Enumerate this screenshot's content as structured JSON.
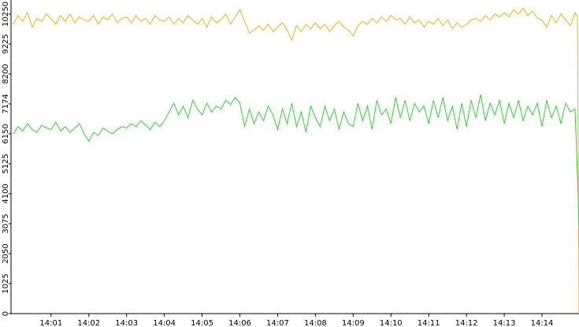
{
  "chart_data": {
    "type": "line",
    "x": [
      0,
      0.125,
      0.25,
      0.375,
      0.5,
      0.625,
      0.75,
      0.875,
      1,
      1.125,
      1.25,
      1.375,
      1.5,
      1.625,
      1.75,
      1.875,
      2,
      2.125,
      2.25,
      2.375,
      2.5,
      2.625,
      2.75,
      2.875,
      3,
      3.125,
      3.25,
      3.375,
      3.5,
      3.625,
      3.75,
      3.875,
      4,
      4.125,
      4.25,
      4.375,
      4.5,
      4.625,
      4.75,
      4.875,
      5,
      5.125,
      5.25,
      5.375,
      5.5,
      5.625,
      5.75,
      5.875,
      6,
      6.125,
      6.25,
      6.375,
      6.5,
      6.625,
      6.75,
      6.875,
      7,
      7.125,
      7.25,
      7.375,
      7.5,
      7.625,
      7.75,
      7.875,
      8,
      8.125,
      8.25,
      8.375,
      8.5,
      8.625,
      8.75,
      8.875,
      9,
      9.125,
      9.25,
      9.375,
      9.5,
      9.625,
      9.75,
      9.875,
      10,
      10.125,
      10.25,
      10.375,
      10.5,
      10.625,
      10.75,
      10.875,
      11,
      11.125,
      11.25,
      11.375,
      11.5,
      11.625,
      11.75,
      11.875,
      12,
      12.125,
      12.25,
      12.375,
      12.5,
      12.625,
      12.75,
      12.875,
      13,
      13.125,
      13.25,
      13.375,
      13.5,
      13.625,
      13.75,
      13.875,
      14,
      14.125,
      14.25,
      14.375,
      14.5,
      14.625,
      14.75,
      14.875,
      14.94,
      14.98
    ],
    "series": [
      {
        "color": "#f0b400",
        "values": [
          9900,
          10200,
          10000,
          10300,
          9800,
          10100,
          10000,
          10250,
          10100,
          9900,
          10200,
          10000,
          10250,
          9950,
          10150,
          10050,
          10000,
          10200,
          9900,
          10150,
          10050,
          10250,
          9950,
          10100,
          10150,
          9950,
          10200,
          10000,
          10100,
          9900,
          10200,
          10050,
          10000,
          10150,
          9900,
          10100,
          9950,
          10200,
          10050,
          9900,
          10100,
          9800,
          10150,
          9950,
          10050,
          10250,
          9900,
          10150,
          10400,
          10000,
          9600,
          9700,
          9850,
          9700,
          9900,
          9650,
          9800,
          9950,
          9700,
          9350,
          9850,
          9650,
          9900,
          9750,
          9950,
          9750,
          9900,
          9650,
          9850,
          10000,
          9800,
          9700,
          9500,
          9850,
          10000,
          9900,
          10100,
          9950,
          10150,
          10000,
          10200,
          10050,
          10100,
          9900,
          10150,
          9950,
          10050,
          9800,
          10000,
          9900,
          10100,
          9850,
          10050,
          9750,
          9950,
          9800,
          9900,
          10050,
          10100,
          10000,
          10200,
          10050,
          10250,
          10150,
          10300,
          10150,
          10400,
          10250,
          10450,
          10200,
          10350,
          10100,
          10050,
          9800,
          10200,
          9950,
          10250,
          10050,
          9850,
          10300,
          10150,
          0
        ]
      },
      {
        "color": "#22dd22",
        "values": [
          6150,
          6400,
          6250,
          6500,
          6300,
          6200,
          6450,
          6350,
          6300,
          6550,
          6250,
          6400,
          6200,
          6350,
          6500,
          6150,
          5900,
          6200,
          6100,
          6350,
          6250,
          6150,
          6300,
          6400,
          6350,
          6500,
          6400,
          6600,
          6450,
          6300,
          6550,
          6400,
          6600,
          6900,
          7200,
          6800,
          7100,
          6700,
          7300,
          7000,
          6800,
          7200,
          6900,
          7100,
          7000,
          7300,
          7150,
          7400,
          7200,
          6400,
          7000,
          6500,
          6900,
          6600,
          7100,
          6800,
          6300,
          7000,
          6500,
          7200,
          6400,
          6900,
          6200,
          7100,
          6700,
          6400,
          7100,
          6600,
          7000,
          6300,
          6900,
          6500,
          6400,
          7200,
          6600,
          7100,
          6300,
          7300,
          6800,
          7000,
          6500,
          7400,
          6700,
          7300,
          6600,
          7200,
          6900,
          7100,
          6500,
          7300,
          6700,
          7400,
          6600,
          7100,
          6300,
          7200,
          6400,
          7300,
          6700,
          7500,
          6600,
          7200,
          6800,
          7300,
          6500,
          7200,
          6700,
          7300,
          6600,
          7100,
          6800,
          7200,
          6400,
          7300,
          6700,
          7100,
          6500,
          7200,
          6900,
          7000,
          4700,
          3000
        ]
      }
    ],
    "xlim": [
      -0.06,
      14.98
    ],
    "xticks": [
      {
        "value": 1,
        "label": "14:01"
      },
      {
        "value": 2,
        "label": "14:02"
      },
      {
        "value": 3,
        "label": "14:03"
      },
      {
        "value": 4,
        "label": "14:04"
      },
      {
        "value": 5,
        "label": "14:05"
      },
      {
        "value": 6,
        "label": "14:06"
      },
      {
        "value": 7,
        "label": "14:07"
      },
      {
        "value": 8,
        "label": "14:08"
      },
      {
        "value": 9,
        "label": "14:09"
      },
      {
        "value": 10,
        "label": "14:10"
      },
      {
        "value": 11,
        "label": "14:11"
      },
      {
        "value": 12,
        "label": "14:12"
      },
      {
        "value": 13,
        "label": "14:13"
      },
      {
        "value": 14,
        "label": "14:14"
      }
    ],
    "ylim": [
      0,
      10730
    ],
    "yticks": [
      0,
      1025,
      2050,
      3075,
      4100,
      5125,
      6150,
      7174,
      8200,
      9225,
      10250
    ]
  }
}
